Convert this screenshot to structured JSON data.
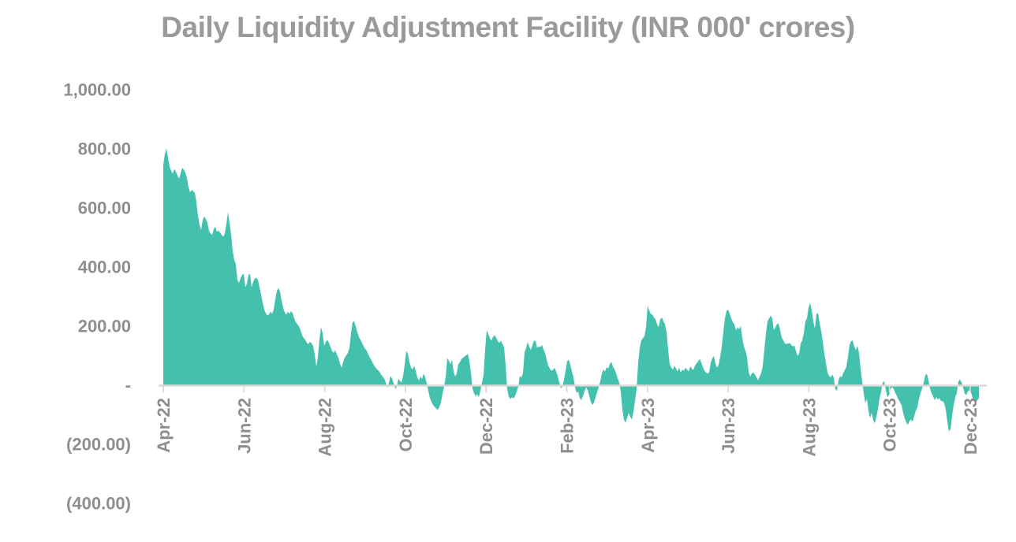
{
  "chart_data": {
    "type": "area",
    "title": "Daily Liquidity Adjustment Facility (INR 000' crores)",
    "unit": "INR 000' crores",
    "grid": false,
    "legend": "none",
    "x_axis": {
      "tick_labels": [
        "Apr-22",
        "Jun-22",
        "Aug-22",
        "Oct-22",
        "Dec-22",
        "Feb-23",
        "Apr-23",
        "Jun-23",
        "Aug-23",
        "Oct-23",
        "Dec-23"
      ],
      "label_rotation_deg": 90,
      "start": "Apr-2022",
      "end": "Dec-2023"
    },
    "y_axis": {
      "range": [
        -400,
        1000
      ],
      "tick_step": 200,
      "ticks": [
        {
          "label": "1,000.00",
          "value": 1000
        },
        {
          "label": "800.00",
          "value": 800
        },
        {
          "label": "600.00",
          "value": 600
        },
        {
          "label": "400.00",
          "value": 400
        },
        {
          "label": "200.00",
          "value": 200
        },
        {
          "label": "-",
          "value": 0
        },
        {
          "label": "(200.00)",
          "value": -200
        },
        {
          "label": "(400.00)",
          "value": -400
        }
      ]
    },
    "series": [
      {
        "name": "Daily Liquidity Adjustment Facility",
        "color": "#44C1AC",
        "sample_interval_days": 1.16,
        "values": [
          745,
          782,
          800,
          768,
          738,
          725,
          715,
          730,
          722,
          708,
          698,
          715,
          735,
          728,
          718,
          700,
          668,
          652,
          660,
          655,
          650,
          618,
          572,
          542,
          525,
          558,
          570,
          562,
          548,
          520,
          512,
          508,
          528,
          535,
          518,
          522,
          515,
          508,
          502,
          512,
          545,
          585,
          548,
          508,
          452,
          422,
          408,
          355,
          345,
          362,
          372,
          376,
          330,
          342,
          372,
          376,
          330,
          348,
          360,
          362,
          355,
          330,
          305,
          278,
          255,
          242,
          235,
          238,
          248,
          240,
          255,
          290,
          318,
          328,
          315,
          285,
          260,
          245,
          238,
          248,
          240,
          250,
          242,
          225,
          212,
          205,
          198,
          185,
          168,
          158,
          152,
          142,
          138,
          146,
          140,
          132,
          102,
          62,
          95,
          155,
          195,
          175,
          132,
          145,
          152,
          142,
          128,
          115,
          108,
          118,
          102,
          92,
          72,
          58,
          78,
          92,
          100,
          108,
          125,
          175,
          212,
          215,
          198,
          178,
          162,
          152,
          142,
          130,
          122,
          115,
          102,
          92,
          82,
          72,
          62,
          56,
          50,
          45,
          35,
          28,
          22,
          8,
          -10,
          6,
          30,
          22,
          6,
          -14,
          -6,
          20,
          14,
          8,
          30,
          68,
          115,
          105,
          78,
          58,
          52,
          65,
          48,
          25,
          15,
          28,
          20,
          38,
          25,
          5,
          -20,
          -45,
          -58,
          -68,
          -75,
          -80,
          -85,
          -75,
          -60,
          -30,
          -5,
          25,
          90,
          82,
          70,
          85,
          45,
          28,
          38,
          70,
          76,
          88,
          92,
          96,
          100,
          105,
          82,
          42,
          -12,
          -30,
          -38,
          -32,
          -42,
          -20,
          8,
          32,
          120,
          185,
          172,
          158,
          150,
          162,
          168,
          160,
          148,
          142,
          150,
          138,
          128,
          65,
          -15,
          -40,
          -48,
          -42,
          -46,
          -38,
          -22,
          -8,
          30,
          25,
          40,
          110,
          125,
          145,
          128,
          118,
          135,
          150,
          148,
          125,
          130,
          128,
          135,
          120,
          108,
          85,
          65,
          55,
          48,
          50,
          58,
          45,
          30,
          8,
          -12,
          -6,
          18,
          48,
          80,
          85,
          68,
          45,
          25,
          -8,
          -28,
          -22,
          -45,
          -52,
          -38,
          -22,
          -8,
          -18,
          -38,
          -58,
          -68,
          -60,
          -42,
          -25,
          -8,
          12,
          38,
          52,
          45,
          60,
          55,
          70,
          78,
          62,
          52,
          40,
          22,
          8,
          -25,
          -85,
          -118,
          -128,
          -112,
          -95,
          -108,
          -118,
          -92,
          -55,
          -15,
          75,
          125,
          150,
          158,
          165,
          195,
          268,
          252,
          240,
          238,
          228,
          222,
          205,
          195,
          222,
          228,
          215,
          205,
          180,
          120,
          70,
          58,
          52,
          65,
          55,
          45,
          58,
          42,
          52,
          48,
          58,
          52,
          45,
          62,
          55,
          50,
          65,
          72,
          80,
          88,
          75,
          60,
          48,
          42,
          38,
          42,
          75,
          90,
          98,
          72,
          58,
          68,
          95,
          130,
          180,
          225,
          250,
          255,
          242,
          225,
          212,
          205,
          185,
          195,
          188,
          200,
          160,
          130,
          115,
          95,
          45,
          28,
          38,
          42,
          35,
          25,
          15,
          28,
          40,
          65,
          120,
          175,
          215,
          225,
          235,
          225,
          185,
          195,
          205,
          208,
          185,
          160,
          150,
          140,
          138,
          140,
          142,
          135,
          130,
          133,
          115,
          98,
          105,
          140,
          150,
          175,
          215,
          225,
          262,
          278,
          252,
          215,
          190,
          238,
          245,
          210,
          182,
          148,
          105,
          75,
          42,
          30,
          25,
          35,
          25,
          -15,
          -20,
          15,
          30,
          25,
          40,
          50,
          62,
          95,
          135,
          148,
          150,
          130,
          118,
          132,
          108,
          55,
          12,
          -30,
          -62,
          -48,
          -88,
          -112,
          -95,
          -120,
          -130,
          -108,
          -82,
          -45,
          -25,
          8,
          12,
          -18,
          -42,
          -35,
          -15,
          -8,
          -14,
          -28,
          -38,
          -50,
          -58,
          -70,
          -95,
          -115,
          -128,
          -135,
          -122,
          -118,
          -125,
          -105,
          -88,
          -75,
          -48,
          -28,
          -12,
          8,
          32,
          38,
          15,
          -12,
          -28,
          -40,
          -52,
          -42,
          -50,
          -45,
          -55,
          -55,
          -62,
          -85,
          -125,
          -158,
          -150,
          -105,
          -68,
          -42,
          -28,
          12,
          18,
          8,
          -10,
          -30,
          -35,
          -22,
          -18,
          -25,
          -45,
          -55,
          -60,
          -52,
          -45
        ]
      }
    ]
  },
  "style": {
    "background": "#FFFFFF",
    "title_color": "#9A9A9A",
    "axis_label_color": "#8E8E8E",
    "axis_line_color": "#D9D9D9",
    "area_color": "#44C1AC"
  }
}
